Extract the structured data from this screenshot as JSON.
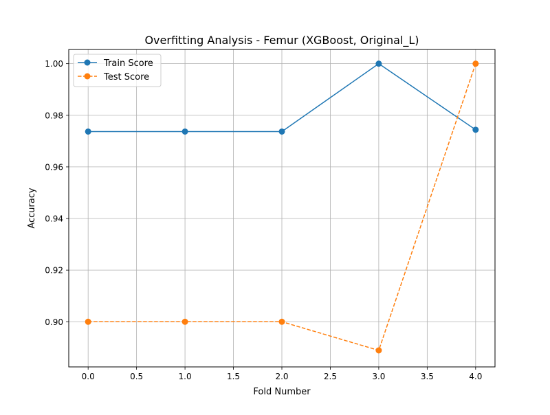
{
  "chart_data": {
    "type": "line",
    "title": "Overfitting Analysis - Femur (XGBoost, Original_L)",
    "xlabel": "Fold Number",
    "ylabel": "Accuracy",
    "xlim": [
      -0.2,
      4.2
    ],
    "ylim": [
      0.8825,
      1.0055
    ],
    "xticks": [
      0.0,
      0.5,
      1.0,
      1.5,
      2.0,
      2.5,
      3.0,
      3.5,
      4.0
    ],
    "xtick_labels": [
      "0.0",
      "0.5",
      "1.0",
      "1.5",
      "2.0",
      "2.5",
      "3.0",
      "3.5",
      "4.0"
    ],
    "yticks": [
      0.9,
      0.92,
      0.94,
      0.96,
      0.98,
      1.0
    ],
    "ytick_labels": [
      "0.90",
      "0.92",
      "0.94",
      "0.96",
      "0.98",
      "1.00"
    ],
    "grid": true,
    "legend_position": "top-left",
    "x": [
      0,
      1,
      2,
      3,
      4
    ],
    "series": [
      {
        "name": "Train Score",
        "values": [
          0.9737,
          0.9737,
          0.9737,
          1.0,
          0.9744
        ],
        "color": "#1f77b4",
        "line_style": "solid",
        "marker": "circle"
      },
      {
        "name": "Test Score",
        "values": [
          0.9,
          0.9,
          0.9,
          0.8889,
          1.0
        ],
        "color": "#ff7f0e",
        "line_style": "dashed",
        "marker": "circle"
      }
    ]
  }
}
